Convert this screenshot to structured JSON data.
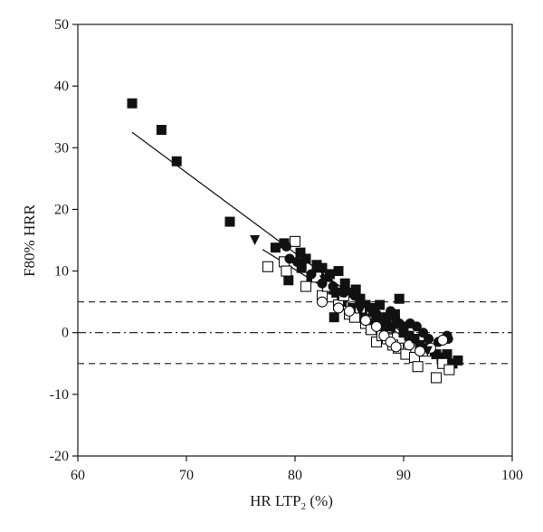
{
  "chart_data": {
    "type": "scatter",
    "title": "",
    "xlabel": "HR LTP",
    "xlabel_sub": "2",
    "xlabel_unit": " (%)",
    "ylabel": "F80% HRR",
    "xlim": [
      60,
      100
    ],
    "ylim": [
      -20,
      50
    ],
    "x_ticks": [
      60,
      70,
      80,
      90,
      100
    ],
    "y_ticks": [
      -20,
      -10,
      0,
      10,
      20,
      30,
      40,
      50
    ],
    "grid": false,
    "reference_lines": [
      {
        "y": 5,
        "style": "dashed"
      },
      {
        "y": 0,
        "style": "dash-dot"
      },
      {
        "y": -5,
        "style": "dashed"
      }
    ],
    "regression_lines": [
      {
        "from": [
          65,
          32.5
        ],
        "to": [
          94.5,
          -6
        ]
      },
      {
        "from": [
          77,
          13.5
        ],
        "to": [
          94,
          -5
        ]
      }
    ],
    "series": [
      {
        "marker": "filled-square",
        "points": [
          [
            65,
            37.2
          ],
          [
            67.7,
            32.9
          ],
          [
            69.1,
            27.8
          ],
          [
            74,
            18
          ],
          [
            78.2,
            13.8
          ],
          [
            79,
            14.5
          ],
          [
            79.4,
            8.5
          ],
          [
            80.5,
            13
          ],
          [
            80.6,
            10.5
          ],
          [
            81,
            12
          ],
          [
            81.5,
            9
          ],
          [
            82,
            11
          ],
          [
            82.2,
            9.5
          ],
          [
            82.5,
            10.5
          ],
          [
            83,
            8
          ],
          [
            83.2,
            9.5
          ],
          [
            83.5,
            7
          ],
          [
            83.6,
            2.5
          ],
          [
            83.8,
            6.5
          ],
          [
            84,
            10
          ],
          [
            84.3,
            5
          ],
          [
            84.6,
            8
          ],
          [
            85,
            6.5
          ],
          [
            85.3,
            4
          ],
          [
            85.6,
            7
          ],
          [
            86,
            5.5
          ],
          [
            86.2,
            3
          ],
          [
            86.5,
            4.5
          ],
          [
            86.9,
            1.5
          ],
          [
            87.2,
            3.5
          ],
          [
            87.5,
            2
          ],
          [
            87.8,
            4.5
          ],
          [
            88,
            0.5
          ],
          [
            88.4,
            2.5
          ],
          [
            88.8,
            1
          ],
          [
            89.2,
            3
          ],
          [
            89.6,
            5.5
          ],
          [
            90,
            0
          ],
          [
            90.5,
            -0.5
          ],
          [
            91,
            -1
          ],
          [
            91.5,
            -2
          ],
          [
            92,
            -2.5
          ],
          [
            92.5,
            -3
          ],
          [
            93,
            -3.5
          ],
          [
            93.5,
            -4
          ],
          [
            94,
            -3.5
          ],
          [
            94.5,
            -5
          ],
          [
            95,
            -4.5
          ]
        ]
      },
      {
        "marker": "open-square",
        "points": [
          [
            77.5,
            10.7
          ],
          [
            79,
            11.5
          ],
          [
            79.2,
            10
          ],
          [
            80,
            14.8
          ],
          [
            81,
            7.5
          ],
          [
            82,
            9
          ],
          [
            82.5,
            6
          ],
          [
            83,
            7.5
          ],
          [
            84,
            4.5
          ],
          [
            84.5,
            6
          ],
          [
            85,
            3
          ],
          [
            85.5,
            2.5
          ],
          [
            86,
            4
          ],
          [
            86.5,
            1.5
          ],
          [
            87,
            0.5
          ],
          [
            87.5,
            -1.5
          ],
          [
            88,
            -0.5
          ],
          [
            88.5,
            -1
          ],
          [
            89,
            -2
          ],
          [
            89.5,
            -2.5
          ],
          [
            90.2,
            -3.5
          ],
          [
            91,
            -4
          ],
          [
            91.3,
            -5.5
          ],
          [
            92,
            -3
          ],
          [
            93,
            -7.3
          ],
          [
            93.6,
            -5
          ],
          [
            94.2,
            -6
          ]
        ]
      },
      {
        "marker": "filled-circle",
        "points": [
          [
            79.2,
            14
          ],
          [
            79.5,
            12
          ],
          [
            80.2,
            11.5
          ],
          [
            81.5,
            9.5
          ],
          [
            82.5,
            8
          ],
          [
            83.5,
            7.5
          ],
          [
            84.5,
            6.5
          ],
          [
            85.5,
            6
          ],
          [
            86,
            4.5
          ],
          [
            87,
            4
          ],
          [
            87.5,
            3
          ],
          [
            88.2,
            2
          ],
          [
            88.8,
            3.5
          ],
          [
            89.2,
            2.5
          ],
          [
            89.6,
            1.5
          ],
          [
            90,
            1
          ],
          [
            90.6,
            1.5
          ],
          [
            91.2,
            1
          ],
          [
            91.8,
            0
          ],
          [
            92.3,
            -1
          ],
          [
            93.2,
            -1.5
          ],
          [
            94,
            -0.5
          ],
          [
            94.1,
            -1
          ]
        ]
      },
      {
        "marker": "open-circle",
        "points": [
          [
            82.5,
            5
          ],
          [
            84,
            4
          ],
          [
            85,
            3.5
          ],
          [
            86.5,
            2
          ],
          [
            87.5,
            1
          ],
          [
            88.2,
            -0.5
          ],
          [
            88.8,
            -1.5
          ],
          [
            89.3,
            -2.3
          ],
          [
            90.5,
            -2
          ],
          [
            91.5,
            -3
          ],
          [
            92.5,
            -2.5
          ],
          [
            93.6,
            -1.2
          ]
        ]
      },
      {
        "marker": "filled-triangle-down",
        "points": [
          [
            76.3,
            15
          ],
          [
            80.5,
            10.5
          ],
          [
            82.7,
            8.5
          ],
          [
            84.2,
            6.5
          ],
          [
            86,
            3.5
          ],
          [
            87.2,
            4
          ],
          [
            88.5,
            1.5
          ],
          [
            89,
            0.5
          ],
          [
            90.8,
            -1
          ],
          [
            92.2,
            -3
          ]
        ]
      }
    ]
  }
}
